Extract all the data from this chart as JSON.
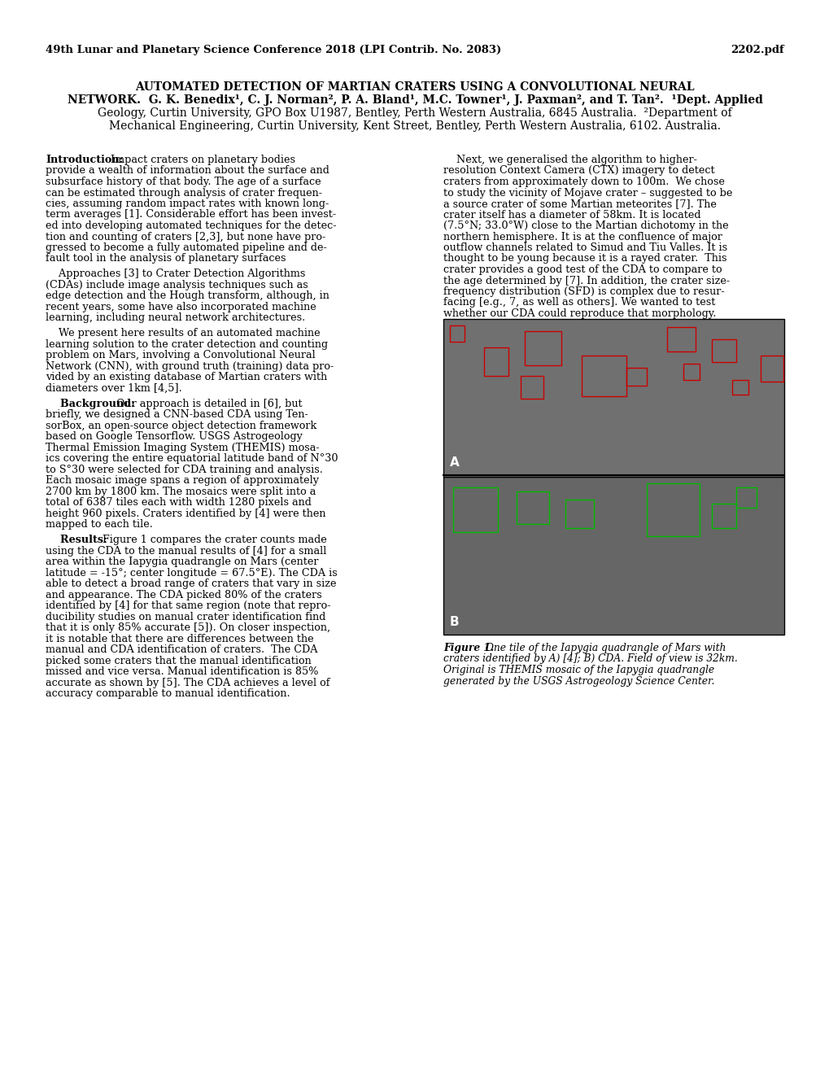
{
  "header_left": "49th Lunar and Planetary Science Conference 2018 (LPI Contrib. No. 2083)",
  "header_right": "2202.pdf",
  "bg_color": "#ffffff",
  "title_bold": "AUTOMATED DETECTION OF MARTIAN CRATERS USING A CONVOLUTIONAL NEURAL NETWORK.",
  "title_normal": " G. K. Benedix¹, C. J. Norman², P. A. Bland¹, M.C. Towner¹, J. Paxman², and T. Tan². ¹Dept. Applied Geology, Curtin University, GPO Box U1987, Bentley, Perth Western Australia, 6845 Australia. ²Department of Mechanical Engineering, Curtin University, Kent Street, Bentley, Perth Western Australia, 6102. Australia.",
  "col1_lines": [
    {
      "bold": "Introduction:",
      "normal": "  Impact craters on planetary bodies",
      "indent": 0
    },
    {
      "bold": "",
      "normal": "provide a wealth of information about the surface and",
      "indent": 0
    },
    {
      "bold": "",
      "normal": "subsurface history of that body. The age of a surface",
      "indent": 0
    },
    {
      "bold": "",
      "normal": "can be estimated through analysis of crater frequen-",
      "indent": 0
    },
    {
      "bold": "",
      "normal": "cies, assuming random impact rates with known long-",
      "indent": 0
    },
    {
      "bold": "",
      "normal": "term averages [1]. Considerable effort has been invest-",
      "indent": 0
    },
    {
      "bold": "",
      "normal": "ed into developing automated techniques for the detec-",
      "indent": 0
    },
    {
      "bold": "",
      "normal": "tion and counting of craters [2,3], but none have pro-",
      "indent": 0
    },
    {
      "bold": "",
      "normal": "gressed to become a fully automated pipeline and de-",
      "indent": 0
    },
    {
      "bold": "",
      "normal": "fault tool in the analysis of planetary surfaces",
      "indent": 0
    },
    {
      "bold": "",
      "normal": "",
      "indent": 0
    },
    {
      "bold": "",
      "normal": "    Approaches [3] to Crater Detection Algorithms",
      "indent": 0
    },
    {
      "bold": "",
      "normal": "(CDAs) include image analysis techniques such as",
      "indent": 0
    },
    {
      "bold": "",
      "normal": "edge detection and the Hough transform, although, in",
      "indent": 0
    },
    {
      "bold": "",
      "normal": "recent years, some have also incorporated machine",
      "indent": 0
    },
    {
      "bold": "",
      "normal": "learning, including neural network architectures.",
      "indent": 0
    },
    {
      "bold": "",
      "normal": "",
      "indent": 0
    },
    {
      "bold": "",
      "normal": "    We present here results of an automated machine",
      "indent": 0
    },
    {
      "bold": "",
      "normal": "learning solution to the crater detection and counting",
      "indent": 0
    },
    {
      "bold": "",
      "normal": "problem on Mars, involving a Convolutional Neural",
      "indent": 0
    },
    {
      "bold": "",
      "normal": "Network (CNN), with ground truth (training) data pro-",
      "indent": 0
    },
    {
      "bold": "",
      "normal": "vided by an existing database of Martian craters with",
      "indent": 0
    },
    {
      "bold": "",
      "normal": "diameters over 1km [4,5].",
      "indent": 0
    },
    {
      "bold": "",
      "normal": "",
      "indent": 0
    },
    {
      "bold": "    Background:",
      "normal": " Our approach is detailed in [6], but",
      "indent": 0
    },
    {
      "bold": "",
      "normal": "briefly, we designed a CNN-based CDA using Ten-",
      "indent": 0
    },
    {
      "bold": "",
      "normal": "sorBox, an open-source object detection framework",
      "indent": 0
    },
    {
      "bold": "",
      "normal": "based on Google Tensorflow. USGS Astrogeology",
      "indent": 0
    },
    {
      "bold": "",
      "normal": "Thermal Emission Imaging System (THEMIS) mosa-",
      "indent": 0
    },
    {
      "bold": "",
      "normal": "ics covering the entire equatorial latitude band of N°30",
      "indent": 0
    },
    {
      "bold": "",
      "normal": "to S°30 were selected for CDA training and analysis.",
      "indent": 0
    },
    {
      "bold": "",
      "normal": "Each mosaic image spans a region of approximately",
      "indent": 0
    },
    {
      "bold": "",
      "normal": "2700 km by 1800 km. The mosaics were split into a",
      "indent": 0
    },
    {
      "bold": "",
      "normal": "total of 6387 tiles each with width 1280 pixels and",
      "indent": 0
    },
    {
      "bold": "",
      "normal": "height 960 pixels. Craters identified by [4] were then",
      "indent": 0
    },
    {
      "bold": "",
      "normal": "mapped to each tile.",
      "indent": 0
    },
    {
      "bold": "",
      "normal": "",
      "indent": 0
    },
    {
      "bold": "    Results:",
      "normal": " Figure 1 compares the crater counts made",
      "indent": 0
    },
    {
      "bold": "",
      "normal": "using the CDA to the manual results of [4] for a small",
      "indent": 0
    },
    {
      "bold": "",
      "normal": "area within the Iapygia quadrangle on Mars (center",
      "indent": 0
    },
    {
      "bold": "",
      "normal": "latitude = -15°; center longitude = 67.5°E). The CDA is",
      "indent": 0
    },
    {
      "bold": "",
      "normal": "able to detect a broad range of craters that vary in size",
      "indent": 0
    },
    {
      "bold": "",
      "normal": "and appearance. The CDA picked 80% of the craters",
      "indent": 0
    },
    {
      "bold": "",
      "normal": "identified by [4] for that same region (note that repro-",
      "indent": 0
    },
    {
      "bold": "",
      "normal": "ducibility studies on manual crater identification find",
      "indent": 0
    },
    {
      "bold": "",
      "normal": "that it is only 85% accurate [5]). On closer inspection,",
      "indent": 0
    },
    {
      "bold": "",
      "normal": "it is notable that there are differences between the",
      "indent": 0
    },
    {
      "bold": "",
      "normal": "manual and CDA identification of craters.  The CDA",
      "indent": 0
    },
    {
      "bold": "",
      "normal": "picked some craters that the manual identification",
      "indent": 0
    },
    {
      "bold": "",
      "normal": "missed and vice versa. Manual identification is 85%",
      "indent": 0
    },
    {
      "bold": "",
      "normal": "accurate as shown by [5]. The CDA achieves a level of",
      "indent": 0
    },
    {
      "bold": "",
      "normal": "accuracy comparable to manual identification.",
      "indent": 0
    }
  ],
  "col2_lines": [
    {
      "bold": "",
      "normal": "    Next, we generalised the algorithm to higher-",
      "indent": 0
    },
    {
      "bold": "",
      "normal": "resolution Context Camera (CTX) imagery to detect",
      "indent": 0
    },
    {
      "bold": "",
      "normal": "craters from approximately down to 100m.  We chose",
      "indent": 0
    },
    {
      "bold": "",
      "normal": "to study the vicinity of Mojave crater – suggested to be",
      "indent": 0
    },
    {
      "bold": "",
      "normal": "a source crater of some Martian meteorites [7]. The",
      "indent": 0
    },
    {
      "bold": "",
      "normal": "crater itself has a diameter of 58km. It is located",
      "indent": 0
    },
    {
      "bold": "",
      "normal": "(7.5°N; 33.0°W) close to the Martian dichotomy in the",
      "indent": 0
    },
    {
      "bold": "",
      "normal": "northern hemisphere. It is at the confluence of major",
      "indent": 0
    },
    {
      "bold": "",
      "normal": "outflow channels related to Simud and Tiu Valles. It is",
      "indent": 0
    },
    {
      "bold": "",
      "normal": "thought to be young because it is a rayed crater.  This",
      "indent": 0
    },
    {
      "bold": "",
      "normal": "crater provides a good test of the CDA to compare to",
      "indent": 0
    },
    {
      "bold": "",
      "normal": "the age determined by [7]. In addition, the crater size-",
      "indent": 0
    },
    {
      "bold": "",
      "normal": "frequency distribution (SFD) is complex due to resur-",
      "indent": 0
    },
    {
      "bold": "",
      "normal": "facing [e.g., 7, as well as others]. We wanted to test",
      "indent": 0
    },
    {
      "bold": "",
      "normal": "whether our CDA could reproduce that morphology.",
      "indent": 0
    }
  ],
  "caption_line1_bold": "Figure 1.",
  "caption_line1_normal": " One tile of the Iapygia quadrangle of Mars with",
  "caption_lines": [
    "craters identified by A) [4]; B) CDA. Field of view is 32km.",
    "Original is THEMIS mosaic of the Iapygia quadrangle",
    "generated by the USGS Astrogeology Science Center."
  ],
  "header_fontsize": 9.5,
  "title_fontsize": 10.0,
  "body_fontsize": 9.2,
  "caption_fontsize": 8.8
}
